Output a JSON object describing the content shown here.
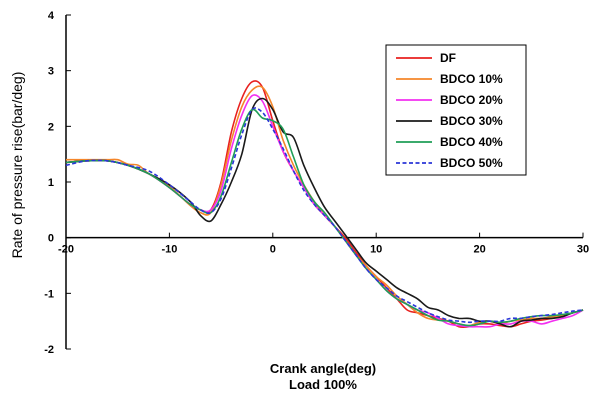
{
  "chart_data": {
    "type": "line",
    "title": "",
    "xlabel": "Crank angle(deg)",
    "xlabel2": "Load 100%",
    "ylabel": "Rate of pressure rise(bar/deg)",
    "xlim": [
      -20,
      30
    ],
    "ylim": [
      -2,
      4
    ],
    "xticks": [
      -20,
      -10,
      0,
      10,
      20,
      30
    ],
    "yticks": [
      -2,
      -1,
      0,
      1,
      2,
      3,
      4
    ],
    "grid": false,
    "legend_position": "top-right",
    "series": [
      {
        "name": "DF",
        "color": "#e8211f",
        "dash": false,
        "x": [
          -20,
          -18,
          -16,
          -14,
          -12,
          -10,
          -8,
          -7,
          -6,
          -5,
          -4,
          -3,
          -2,
          -1,
          0,
          1,
          2,
          3,
          4,
          5,
          6,
          7,
          8,
          9,
          10,
          11,
          12,
          13,
          14,
          15,
          16,
          17,
          18,
          19,
          20,
          21,
          22,
          23,
          24,
          25,
          26,
          27,
          28,
          29,
          30
        ],
        "y": [
          1.35,
          1.38,
          1.38,
          1.3,
          1.15,
          0.9,
          0.6,
          0.5,
          0.5,
          1.0,
          1.9,
          2.5,
          2.8,
          2.7,
          2.1,
          1.55,
          1.2,
          0.9,
          0.6,
          0.4,
          0.2,
          0.0,
          -0.25,
          -0.5,
          -0.7,
          -0.9,
          -1.1,
          -1.3,
          -1.35,
          -1.4,
          -1.45,
          -1.5,
          -1.6,
          -1.6,
          -1.55,
          -1.55,
          -1.58,
          -1.6,
          -1.55,
          -1.5,
          -1.48,
          -1.45,
          -1.4,
          -1.35,
          -1.3
        ]
      },
      {
        "name": "BDCO 10%",
        "color": "#f5862a",
        "dash": false,
        "x": [
          -20,
          -18,
          -16,
          -15,
          -14,
          -13,
          -12,
          -10,
          -8,
          -7,
          -6,
          -5,
          -4,
          -3,
          -2,
          -1,
          0,
          1,
          2,
          3,
          4,
          5,
          6,
          7,
          8,
          9,
          10,
          11,
          12,
          13,
          14,
          15,
          16,
          17,
          18,
          19,
          20,
          21,
          22,
          23,
          24,
          25,
          26,
          27,
          28,
          29,
          30
        ],
        "y": [
          1.4,
          1.4,
          1.4,
          1.4,
          1.32,
          1.3,
          1.15,
          0.92,
          0.58,
          0.45,
          0.45,
          0.95,
          1.75,
          2.35,
          2.65,
          2.7,
          2.35,
          1.75,
          1.3,
          0.95,
          0.65,
          0.4,
          0.2,
          -0.05,
          -0.3,
          -0.5,
          -0.7,
          -0.85,
          -1.05,
          -1.2,
          -1.35,
          -1.45,
          -1.48,
          -1.5,
          -1.55,
          -1.58,
          -1.52,
          -1.5,
          -1.55,
          -1.5,
          -1.48,
          -1.45,
          -1.45,
          -1.42,
          -1.4,
          -1.35,
          -1.3
        ]
      },
      {
        "name": "BDCO 20%",
        "color": "#f230f0",
        "dash": false,
        "x": [
          -20,
          -18,
          -16,
          -14,
          -12,
          -10,
          -8,
          -7,
          -6,
          -5,
          -4,
          -3,
          -2,
          -1,
          0,
          1,
          2,
          3,
          4,
          5,
          6,
          7,
          8,
          9,
          10,
          11,
          12,
          13,
          14,
          15,
          16,
          17,
          18,
          19,
          20,
          21,
          22,
          23,
          24,
          25,
          26,
          27,
          28,
          29,
          30
        ],
        "y": [
          1.35,
          1.38,
          1.38,
          1.3,
          1.15,
          0.9,
          0.6,
          0.5,
          0.5,
          0.85,
          1.6,
          2.2,
          2.55,
          2.45,
          2.0,
          1.55,
          1.2,
          0.9,
          0.6,
          0.4,
          0.2,
          -0.05,
          -0.3,
          -0.55,
          -0.75,
          -0.95,
          -1.1,
          -1.2,
          -1.3,
          -1.35,
          -1.45,
          -1.55,
          -1.58,
          -1.6,
          -1.6,
          -1.6,
          -1.55,
          -1.55,
          -1.5,
          -1.5,
          -1.55,
          -1.5,
          -1.45,
          -1.4,
          -1.3
        ]
      },
      {
        "name": "BDCO 30%",
        "color": "#1a1a1a",
        "dash": false,
        "x": [
          -20,
          -18,
          -16,
          -14,
          -12,
          -10,
          -8,
          -7,
          -6,
          -5,
          -4,
          -3,
          -2,
          -1,
          0,
          1,
          2,
          3,
          4,
          5,
          6,
          7,
          8,
          9,
          10,
          11,
          12,
          13,
          14,
          15,
          16,
          17,
          18,
          19,
          20,
          21,
          22,
          23,
          24,
          25,
          26,
          27,
          28,
          29,
          30
        ],
        "y": [
          1.35,
          1.38,
          1.38,
          1.3,
          1.15,
          0.95,
          0.65,
          0.4,
          0.3,
          0.6,
          1.0,
          1.5,
          2.3,
          2.5,
          2.3,
          1.9,
          1.8,
          1.3,
          0.9,
          0.55,
          0.3,
          0.05,
          -0.2,
          -0.45,
          -0.6,
          -0.75,
          -0.9,
          -1.0,
          -1.1,
          -1.25,
          -1.3,
          -1.4,
          -1.45,
          -1.45,
          -1.5,
          -1.5,
          -1.55,
          -1.6,
          -1.5,
          -1.48,
          -1.45,
          -1.45,
          -1.42,
          -1.35,
          -1.3
        ]
      },
      {
        "name": "BDCO 40%",
        "color": "#1f9e57",
        "dash": false,
        "x": [
          -20,
          -18,
          -16,
          -14,
          -12,
          -10,
          -8,
          -7,
          -6,
          -5,
          -4,
          -3,
          -2,
          -1,
          0,
          1,
          2,
          3,
          4,
          5,
          6,
          7,
          8,
          9,
          10,
          11,
          12,
          13,
          14,
          15,
          16,
          17,
          18,
          19,
          20,
          21,
          22,
          23,
          24,
          25,
          26,
          27,
          28,
          29,
          30
        ],
        "y": [
          1.35,
          1.38,
          1.38,
          1.3,
          1.15,
          0.9,
          0.6,
          0.5,
          0.45,
          0.75,
          1.35,
          1.95,
          2.3,
          2.15,
          2.1,
          1.95,
          1.45,
          0.95,
          0.65,
          0.45,
          0.2,
          -0.05,
          -0.3,
          -0.55,
          -0.75,
          -0.95,
          -1.1,
          -1.2,
          -1.3,
          -1.4,
          -1.48,
          -1.5,
          -1.55,
          -1.58,
          -1.55,
          -1.5,
          -1.52,
          -1.5,
          -1.45,
          -1.42,
          -1.4,
          -1.4,
          -1.38,
          -1.35,
          -1.3
        ]
      },
      {
        "name": "BDCO 50%",
        "color": "#2a36d8",
        "dash": true,
        "x": [
          -20,
          -18,
          -16,
          -14,
          -12,
          -10,
          -8,
          -7,
          -6,
          -5,
          -4,
          -3,
          -2,
          -1,
          0,
          1,
          2,
          3,
          4,
          5,
          6,
          7,
          8,
          9,
          10,
          11,
          12,
          13,
          14,
          15,
          16,
          17,
          18,
          19,
          20,
          21,
          22,
          23,
          24,
          25,
          26,
          27,
          28,
          29,
          30
        ],
        "y": [
          1.3,
          1.38,
          1.38,
          1.3,
          1.2,
          0.95,
          0.65,
          0.5,
          0.45,
          0.7,
          1.25,
          1.85,
          2.3,
          2.25,
          1.95,
          1.6,
          1.2,
          0.85,
          0.6,
          0.4,
          0.2,
          -0.05,
          -0.3,
          -0.55,
          -0.75,
          -0.9,
          -1.05,
          -1.15,
          -1.25,
          -1.35,
          -1.42,
          -1.48,
          -1.5,
          -1.52,
          -1.5,
          -1.5,
          -1.5,
          -1.45,
          -1.45,
          -1.42,
          -1.4,
          -1.38,
          -1.35,
          -1.32,
          -1.3
        ]
      }
    ]
  }
}
